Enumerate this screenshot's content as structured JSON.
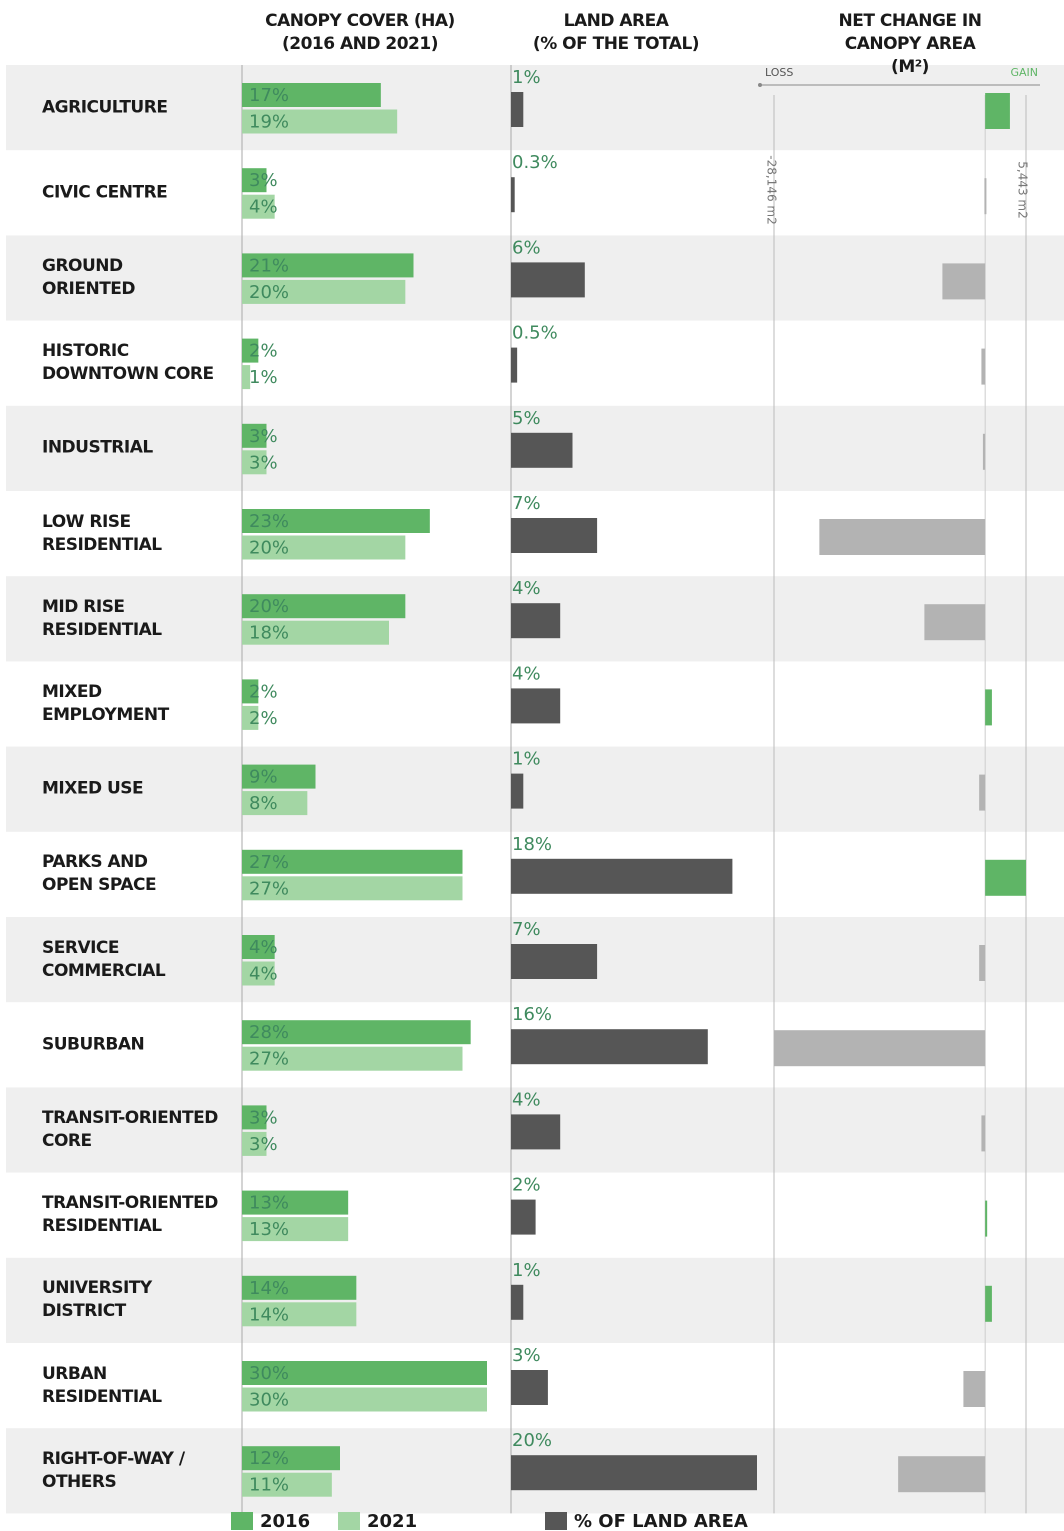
{
  "chart_data": [
    {
      "type": "bar",
      "title": "CANOPY COVER (HA)\n(2016 AND 2021)",
      "categories": [
        "AGRICULTURE",
        "CIVIC CENTRE",
        "GROUND\nORIENTED",
        "HISTORIC\nDOWNTOWN CORE",
        "INDUSTRIAL",
        "LOW RISE\nRESIDENTIAL",
        "MID RISE\nRESIDENTIAL",
        "MIXED\nEMPLOYMENT",
        "MIXED USE",
        "PARKS AND\nOPEN SPACE",
        "SERVICE\nCOMMERCIAL",
        "SUBURBAN",
        "TRANSIT-ORIENTED\nCORE",
        "TRANSIT-ORIENTED\nRESIDENTIAL",
        "UNIVERSITY\nDISTRICT",
        "URBAN\nRESIDENTIAL",
        "RIGHT-OF-WAY /\nOTHERS"
      ],
      "xlim": [
        0,
        30
      ],
      "series": [
        {
          "name": "2016",
          "color": "#5fb566",
          "values": [
            17,
            3,
            21,
            2,
            3,
            23,
            20,
            2,
            9,
            27,
            4,
            28,
            3,
            13,
            14,
            30,
            12
          ],
          "value_labels": [
            "17%",
            "3%",
            "21%",
            "2%",
            "3%",
            "23%",
            "20%",
            "2%",
            "9%",
            "27%",
            "4%",
            "28%",
            "3%",
            "13%",
            "14%",
            "30%",
            "12%"
          ]
        },
        {
          "name": "2021",
          "color": "#a3d6a4",
          "values": [
            19,
            4,
            20,
            1,
            3,
            20,
            18,
            2,
            8,
            27,
            4,
            27,
            3,
            13,
            14,
            30,
            11
          ],
          "value_labels": [
            "19%",
            "4%",
            "20%",
            "1%",
            "3%",
            "20%",
            "18%",
            "2%",
            "8%",
            "27%",
            "4%",
            "27%",
            "3%",
            "13%",
            "14%",
            "30%",
            "11%"
          ]
        }
      ]
    },
    {
      "type": "bar",
      "title": "LAND AREA\n(% OF THE TOTAL)",
      "xlim": [
        0,
        20
      ],
      "series": [
        {
          "name": "% OF LAND AREA",
          "color": "#565656",
          "values": [
            1,
            0.3,
            6,
            0.5,
            5,
            7,
            4,
            4,
            1,
            18,
            7,
            16,
            4,
            2,
            1,
            3,
            20
          ],
          "value_labels": [
            "1%",
            "0.3%",
            "6%",
            "0.5%",
            "5%",
            "7%",
            "4%",
            "4%",
            "1%",
            "18%",
            "7%",
            "16%",
            "4%",
            "2%",
            "1%",
            "3%",
            "20%"
          ]
        }
      ]
    },
    {
      "type": "diverging-bar",
      "title": "NET CHANGE IN\nCANOPY AREA (M²)",
      "xlim": [
        -28146,
        5443
      ],
      "xticks": [
        {
          "value": -28146,
          "label": "-28,146 m2"
        },
        {
          "value": 5443,
          "label": "5,443 m2"
        }
      ],
      "annotations": {
        "loss": "LOSS",
        "gain": "GAIN"
      },
      "colors": {
        "gain": "#5fb566",
        "loss": "#b3b3b3"
      },
      "values": [
        3300,
        -100,
        -5700,
        -500,
        -300,
        -22100,
        -8100,
        900,
        -800,
        5443,
        -800,
        -28146,
        -500,
        200,
        900,
        -2900,
        -11600
      ]
    }
  ]
}
